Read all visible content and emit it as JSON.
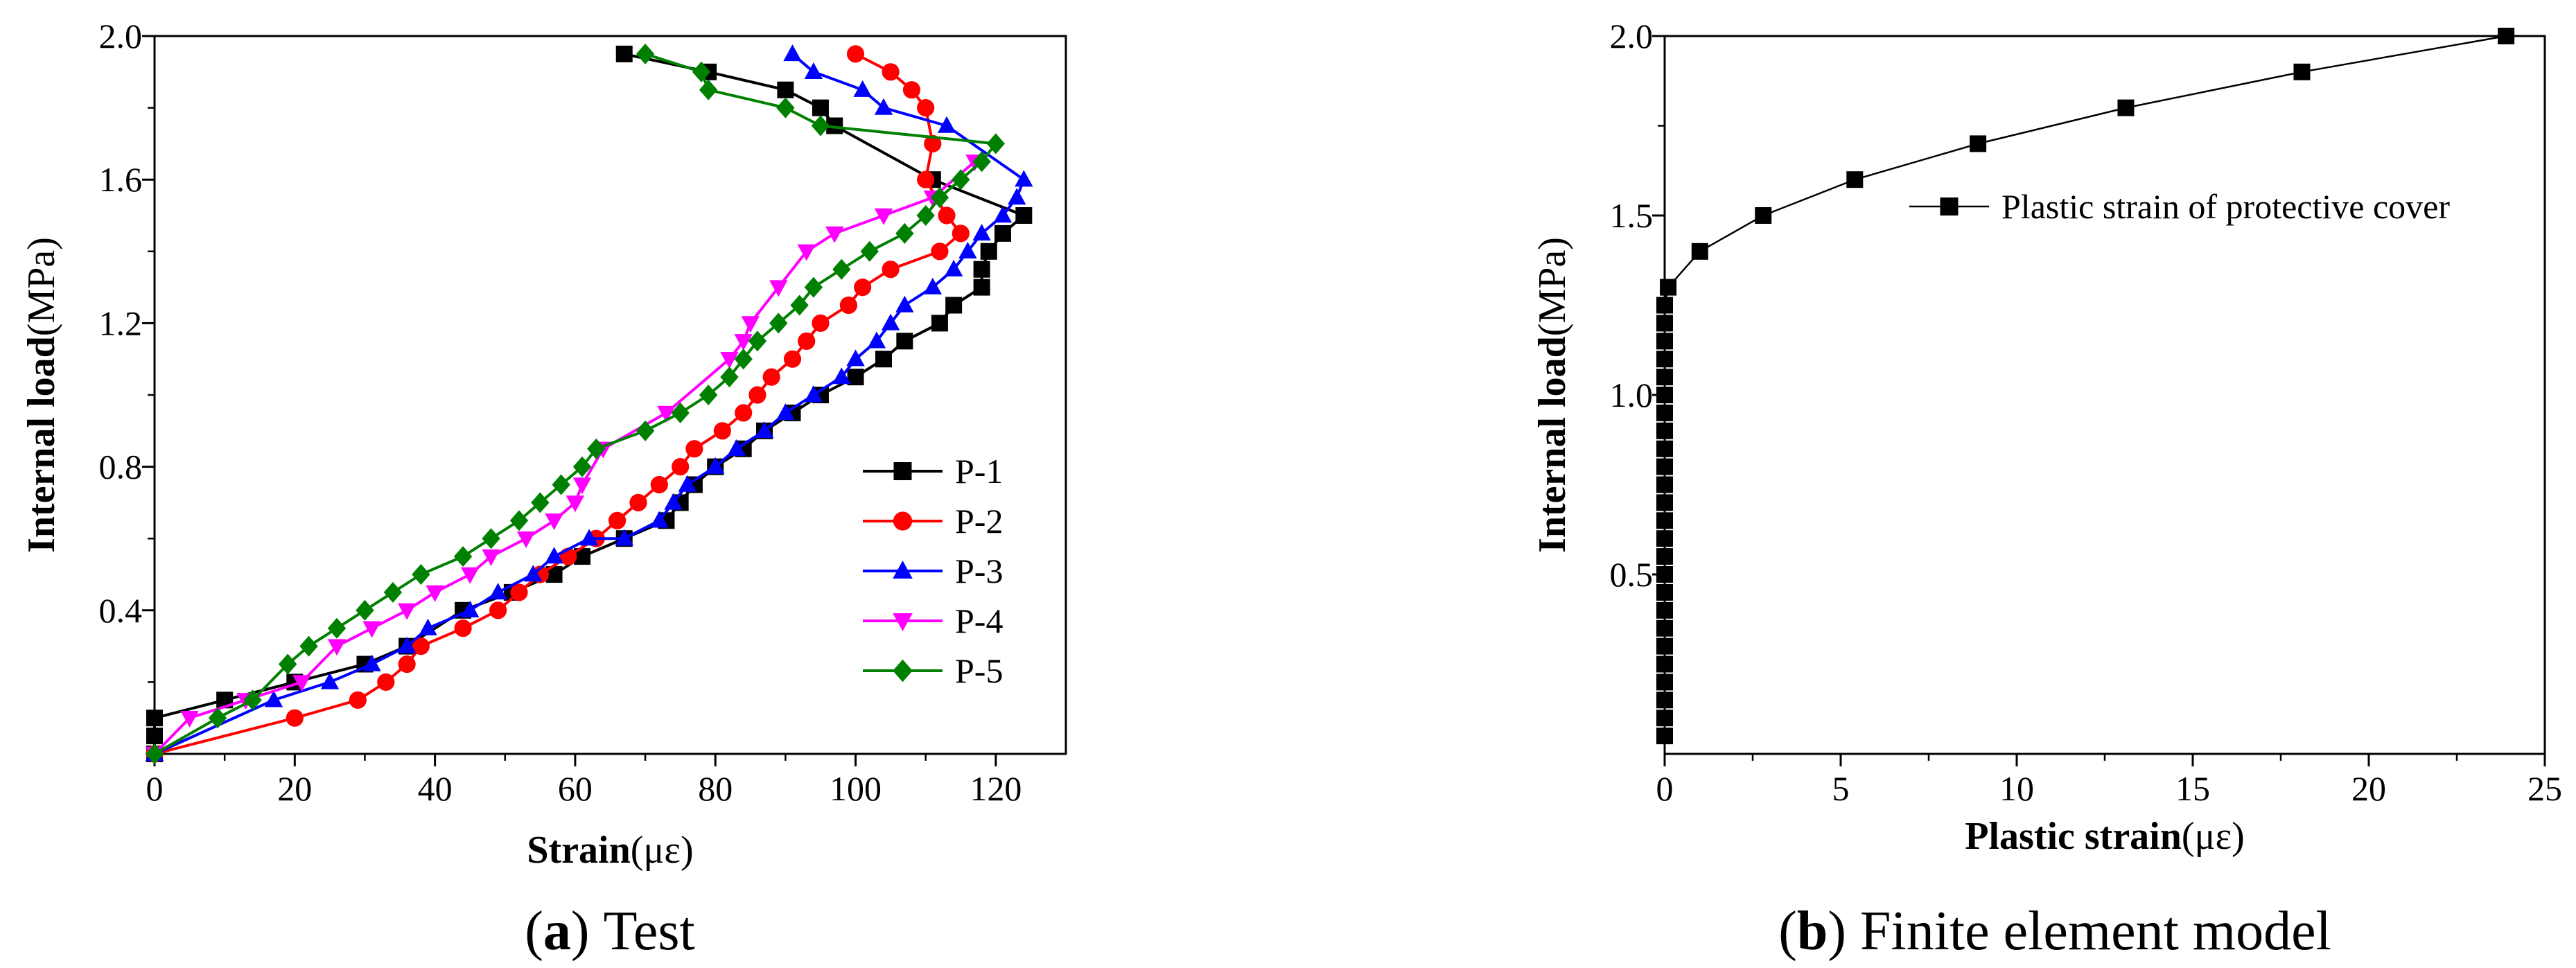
{
  "chart_data": [
    {
      "type": "line",
      "panel_label": "a",
      "caption_text": "Test",
      "caption_open": "(",
      "caption_close": ")",
      "xlabel_main": "Strain",
      "xlabel_unit": "(με)",
      "ylabel_main": "Internal load",
      "ylabel_unit": "(MPa)",
      "xlim": [
        0,
        130
      ],
      "ylim": [
        0,
        2.0
      ],
      "xticks": [
        0,
        20,
        40,
        60,
        80,
        100,
        120
      ],
      "yticks": [
        0.4,
        0.8,
        1.2,
        1.6,
        2.0
      ],
      "ytick_labels": [
        "0.4",
        "0.8",
        "1.2",
        "1.6",
        "2.0"
      ],
      "legend_position": "lower-right",
      "series": [
        {
          "name": "P-1",
          "color": "#000000",
          "marker": "square",
          "points": [
            [
              0,
              0
            ],
            [
              0,
              0.05
            ],
            [
              0,
              0.1
            ],
            [
              10,
              0.15
            ],
            [
              20,
              0.2
            ],
            [
              30,
              0.25
            ],
            [
              36,
              0.3
            ],
            [
              44,
              0.4
            ],
            [
              51,
              0.45
            ],
            [
              57,
              0.5
            ],
            [
              61,
              0.55
            ],
            [
              67,
              0.6
            ],
            [
              73,
              0.65
            ],
            [
              75,
              0.7
            ],
            [
              77,
              0.75
            ],
            [
              80,
              0.8
            ],
            [
              84,
              0.85
            ],
            [
              87,
              0.9
            ],
            [
              91,
              0.95
            ],
            [
              95,
              1.0
            ],
            [
              100,
              1.05
            ],
            [
              104,
              1.1
            ],
            [
              107,
              1.15
            ],
            [
              112,
              1.2
            ],
            [
              114,
              1.25
            ],
            [
              118,
              1.3
            ],
            [
              118,
              1.35
            ],
            [
              119,
              1.4
            ],
            [
              121,
              1.45
            ],
            [
              124,
              1.5
            ],
            [
              111,
              1.6
            ],
            [
              97,
              1.75
            ],
            [
              95,
              1.8
            ],
            [
              90,
              1.85
            ],
            [
              79,
              1.9
            ],
            [
              67,
              1.95
            ]
          ]
        },
        {
          "name": "P-2",
          "color": "#ff0000",
          "marker": "circle",
          "points": [
            [
              0,
              0
            ],
            [
              20,
              0.1
            ],
            [
              29,
              0.15
            ],
            [
              33,
              0.2
            ],
            [
              36,
              0.25
            ],
            [
              38,
              0.3
            ],
            [
              44,
              0.35
            ],
            [
              49,
              0.4
            ],
            [
              52,
              0.45
            ],
            [
              55,
              0.5
            ],
            [
              59,
              0.55
            ],
            [
              63,
              0.6
            ],
            [
              66,
              0.65
            ],
            [
              69,
              0.7
            ],
            [
              72,
              0.75
            ],
            [
              75,
              0.8
            ],
            [
              77,
              0.85
            ],
            [
              81,
              0.9
            ],
            [
              84,
              0.95
            ],
            [
              86,
              1.0
            ],
            [
              88,
              1.05
            ],
            [
              91,
              1.1
            ],
            [
              93,
              1.15
            ],
            [
              95,
              1.2
            ],
            [
              99,
              1.25
            ],
            [
              101,
              1.3
            ],
            [
              105,
              1.35
            ],
            [
              112,
              1.4
            ],
            [
              115,
              1.45
            ],
            [
              113,
              1.5
            ],
            [
              110,
              1.6
            ],
            [
              111,
              1.7
            ],
            [
              110,
              1.8
            ],
            [
              108,
              1.85
            ],
            [
              105,
              1.9
            ],
            [
              100,
              1.95
            ]
          ]
        },
        {
          "name": "P-3",
          "color": "#0000ff",
          "marker": "triangle-up",
          "points": [
            [
              0,
              0
            ],
            [
              17,
              0.15
            ],
            [
              25,
              0.2
            ],
            [
              31,
              0.25
            ],
            [
              36,
              0.3
            ],
            [
              39,
              0.35
            ],
            [
              45,
              0.4
            ],
            [
              49,
              0.45
            ],
            [
              54,
              0.5
            ],
            [
              57,
              0.55
            ],
            [
              62,
              0.6
            ],
            [
              67,
              0.6
            ],
            [
              72,
              0.65
            ],
            [
              74,
              0.7
            ],
            [
              76,
              0.75
            ],
            [
              80,
              0.8
            ],
            [
              83,
              0.85
            ],
            [
              87,
              0.9
            ],
            [
              90,
              0.95
            ],
            [
              94,
              1.0
            ],
            [
              98,
              1.05
            ],
            [
              100,
              1.1
            ],
            [
              103,
              1.15
            ],
            [
              105,
              1.2
            ],
            [
              107,
              1.25
            ],
            [
              111,
              1.3
            ],
            [
              114,
              1.35
            ],
            [
              116,
              1.4
            ],
            [
              118,
              1.45
            ],
            [
              121,
              1.5
            ],
            [
              123,
              1.55
            ],
            [
              124,
              1.6
            ],
            [
              113,
              1.75
            ],
            [
              104,
              1.8
            ],
            [
              101,
              1.85
            ],
            [
              94,
              1.9
            ],
            [
              91,
              1.95
            ]
          ]
        },
        {
          "name": "P-4",
          "color": "#ff00ff",
          "marker": "triangle-down",
          "points": [
            [
              0,
              0
            ],
            [
              5,
              0.1
            ],
            [
              13,
              0.15
            ],
            [
              21,
              0.2
            ],
            [
              26,
              0.3
            ],
            [
              31,
              0.35
            ],
            [
              36,
              0.4
            ],
            [
              40,
              0.45
            ],
            [
              45,
              0.5
            ],
            [
              48,
              0.55
            ],
            [
              53,
              0.6
            ],
            [
              57,
              0.65
            ],
            [
              60,
              0.7
            ],
            [
              61,
              0.75
            ],
            [
              64,
              0.85
            ],
            [
              73,
              0.95
            ],
            [
              82,
              1.1
            ],
            [
              84,
              1.15
            ],
            [
              85,
              1.2
            ],
            [
              89,
              1.3
            ],
            [
              93,
              1.4
            ],
            [
              97,
              1.45
            ],
            [
              104,
              1.5
            ],
            [
              111,
              1.55
            ],
            [
              117,
              1.65
            ]
          ]
        },
        {
          "name": "P-5",
          "color": "#008000",
          "marker": "diamond",
          "points": [
            [
              0,
              0
            ],
            [
              9,
              0.1
            ],
            [
              14,
              0.15
            ],
            [
              19,
              0.25
            ],
            [
              22,
              0.3
            ],
            [
              26,
              0.35
            ],
            [
              30,
              0.4
            ],
            [
              34,
              0.45
            ],
            [
              38,
              0.5
            ],
            [
              44,
              0.55
            ],
            [
              48,
              0.6
            ],
            [
              52,
              0.65
            ],
            [
              55,
              0.7
            ],
            [
              58,
              0.75
            ],
            [
              61,
              0.8
            ],
            [
              63,
              0.85
            ],
            [
              70,
              0.9
            ],
            [
              75,
              0.95
            ],
            [
              79,
              1.0
            ],
            [
              82,
              1.05
            ],
            [
              84,
              1.1
            ],
            [
              86,
              1.15
            ],
            [
              89,
              1.2
            ],
            [
              92,
              1.25
            ],
            [
              94,
              1.3
            ],
            [
              98,
              1.35
            ],
            [
              102,
              1.4
            ],
            [
              107,
              1.45
            ],
            [
              110,
              1.5
            ],
            [
              112,
              1.55
            ],
            [
              115,
              1.6
            ],
            [
              118,
              1.65
            ],
            [
              120,
              1.7
            ],
            [
              95,
              1.75
            ],
            [
              90,
              1.8
            ],
            [
              79,
              1.85
            ],
            [
              78,
              1.9
            ],
            [
              70,
              1.95
            ]
          ]
        }
      ]
    },
    {
      "type": "line",
      "panel_label": "b",
      "caption_text": "Finite element model",
      "caption_open": "(",
      "caption_close": ")",
      "xlabel_main": "Plastic strain",
      "xlabel_unit": "(με)",
      "ylabel_main": "Internal load",
      "ylabel_unit": "(MPa)",
      "xlim": [
        0,
        25
      ],
      "ylim": [
        0,
        2.0
      ],
      "xticks": [
        0,
        5,
        10,
        15,
        20,
        25
      ],
      "yticks": [
        0.5,
        1.0,
        1.5,
        2.0
      ],
      "ytick_labels": [
        "0.5",
        "1.0",
        "1.5",
        "2.0"
      ],
      "legend_position": "top-right",
      "series": [
        {
          "name": "Plastic strain of protective cover",
          "color": "#000000",
          "marker": "square",
          "points": [
            [
              0,
              0.05
            ],
            [
              0,
              0.1
            ],
            [
              0,
              0.15
            ],
            [
              0,
              0.2
            ],
            [
              0,
              0.25
            ],
            [
              0,
              0.3
            ],
            [
              0,
              0.35
            ],
            [
              0,
              0.4
            ],
            [
              0,
              0.45
            ],
            [
              0,
              0.5
            ],
            [
              0,
              0.55
            ],
            [
              0,
              0.6
            ],
            [
              0,
              0.65
            ],
            [
              0,
              0.7
            ],
            [
              0,
              0.75
            ],
            [
              0,
              0.8
            ],
            [
              0,
              0.85
            ],
            [
              0,
              0.9
            ],
            [
              0,
              0.95
            ],
            [
              0,
              1.0
            ],
            [
              0,
              1.05
            ],
            [
              0,
              1.1
            ],
            [
              0,
              1.15
            ],
            [
              0,
              1.2
            ],
            [
              0,
              1.25
            ],
            [
              0.1,
              1.3
            ],
            [
              1,
              1.4
            ],
            [
              2.8,
              1.5
            ],
            [
              5.4,
              1.6
            ],
            [
              8.9,
              1.7
            ],
            [
              13.1,
              1.8
            ],
            [
              18.1,
              1.9
            ],
            [
              23.9,
              2.0
            ]
          ]
        }
      ]
    }
  ]
}
